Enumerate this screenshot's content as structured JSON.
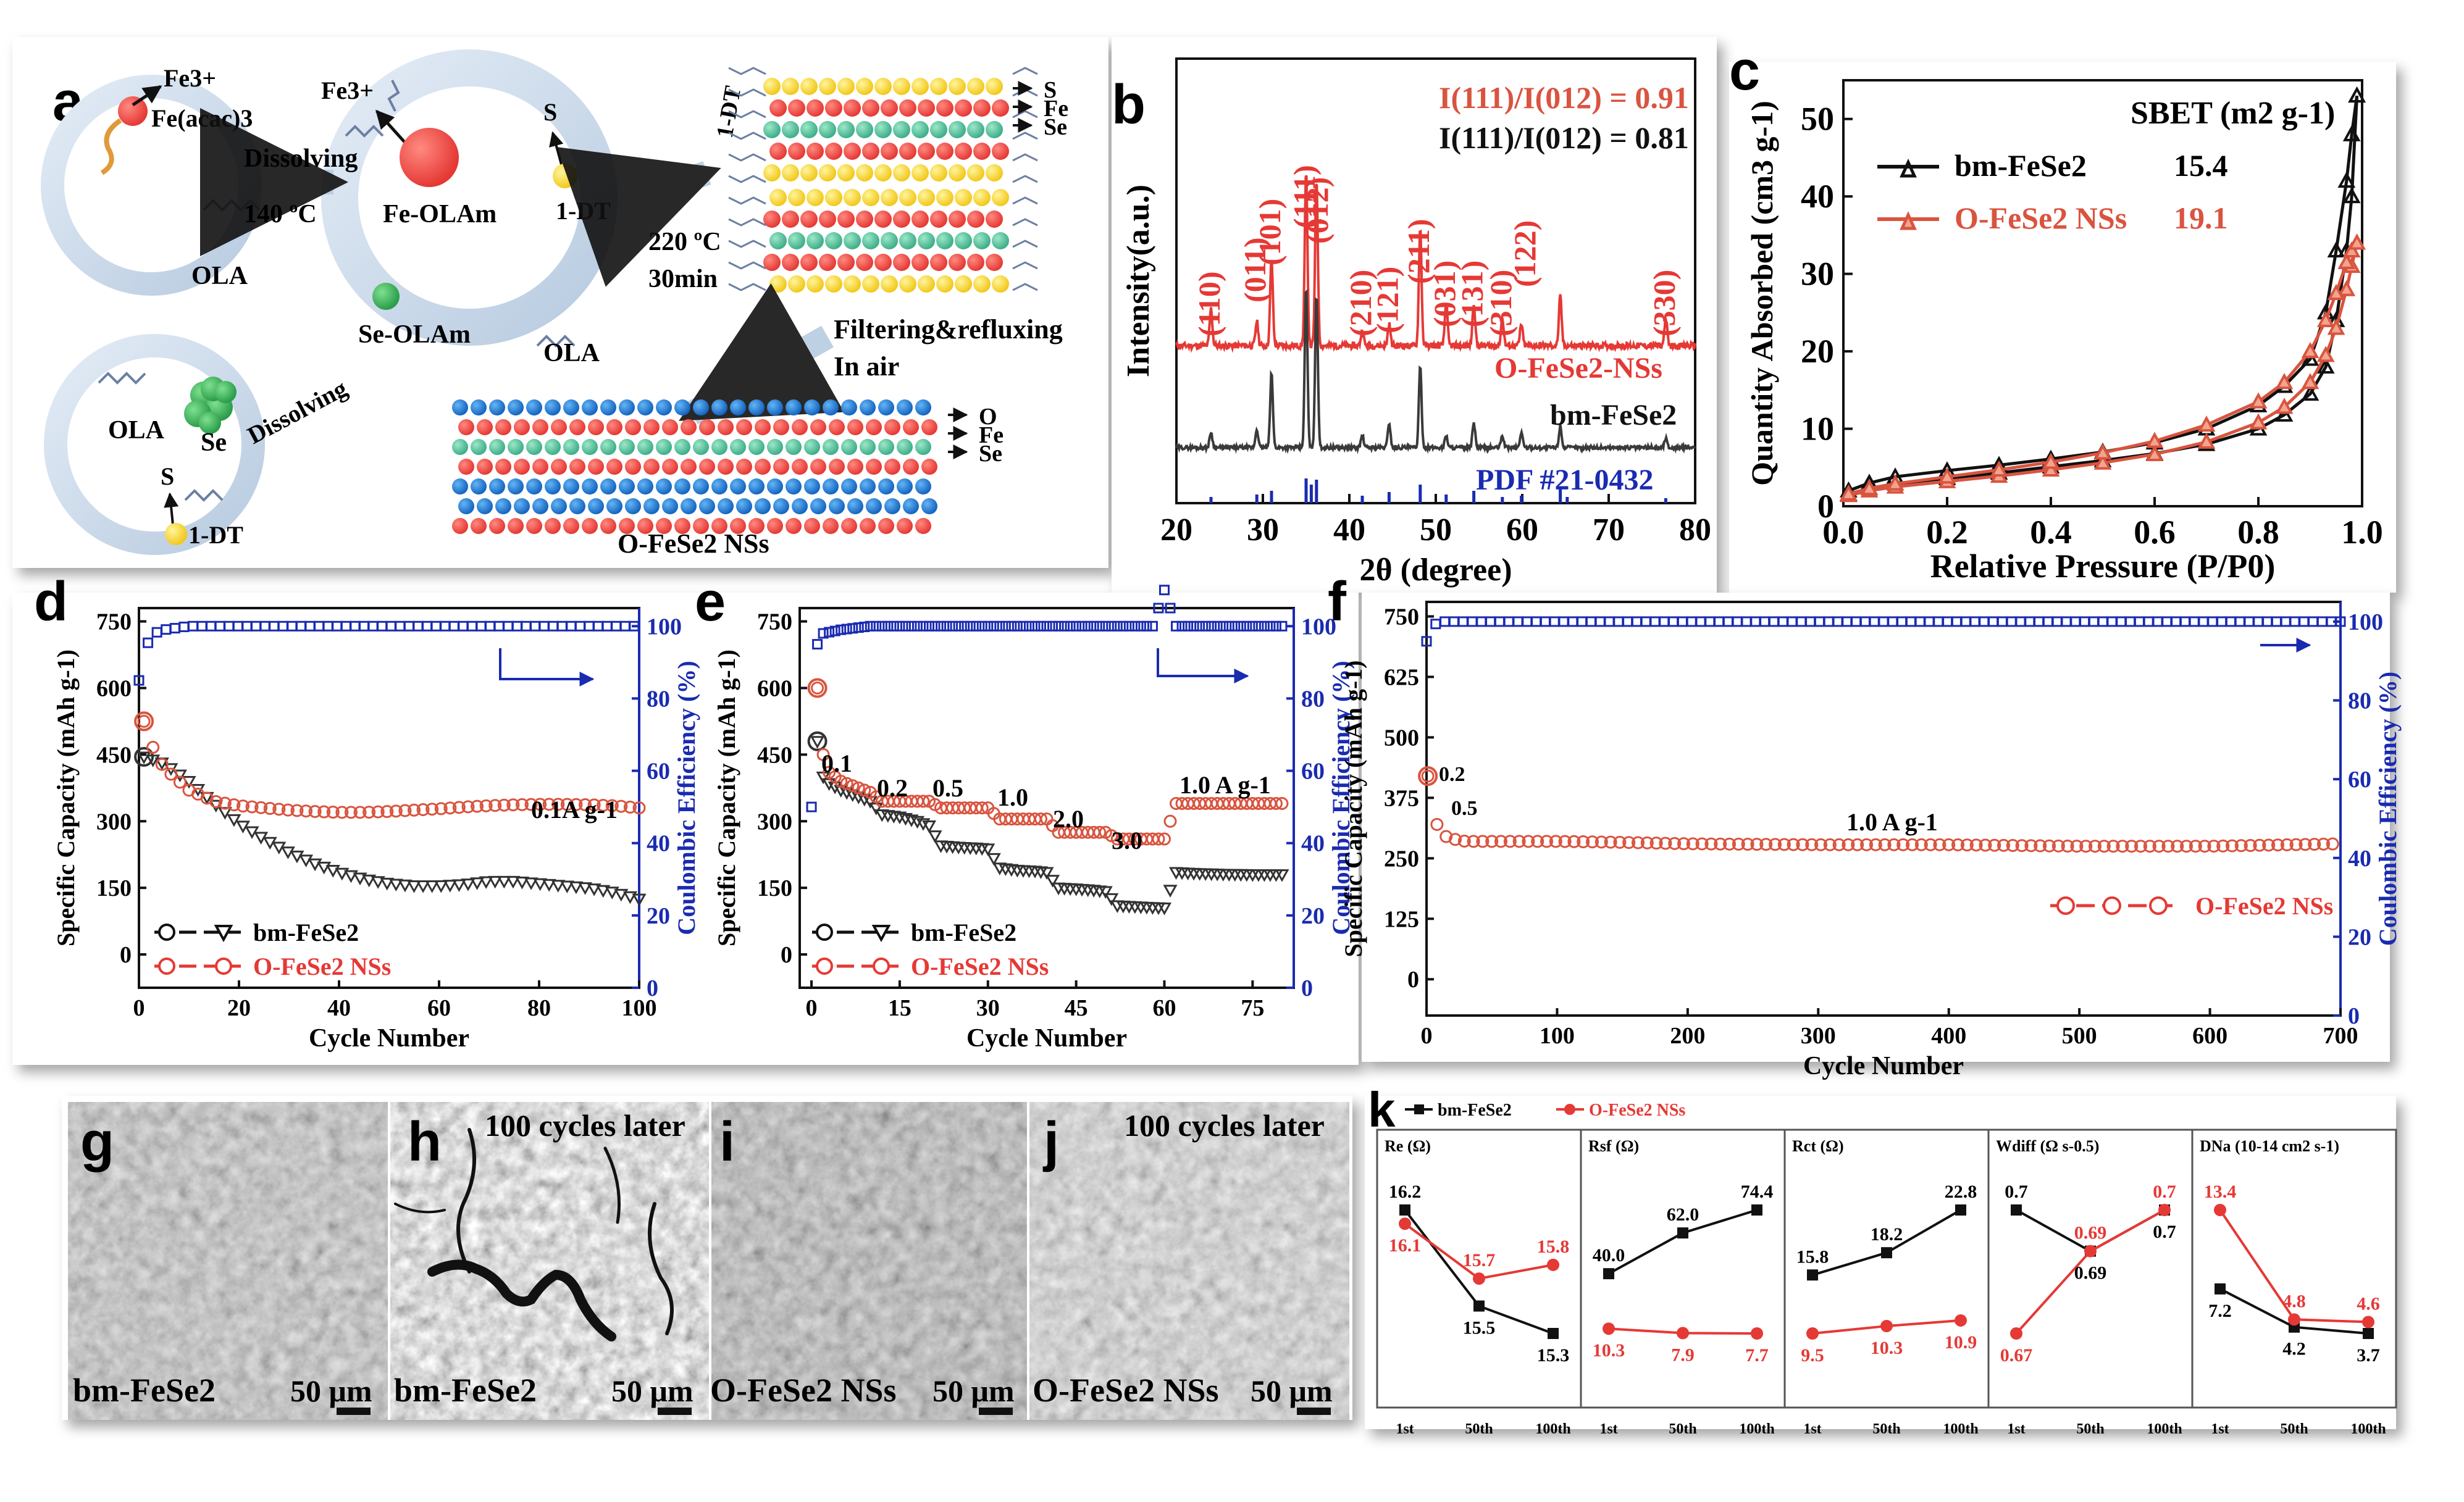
{
  "panel_letters": {
    "a": "a",
    "b": "b",
    "c": "c",
    "d": "d",
    "e": "e",
    "f": "f",
    "g": "g",
    "h": "h",
    "i": "i",
    "j": "j",
    "k": "k"
  },
  "schematic": {
    "fe3_top": "Fe3+",
    "fe_acac": "Fe(acac)3",
    "fe3_mid": "Fe3+",
    "dissolving1": "Dissolving",
    "temp1": "140 ºC",
    "ola1": "OLA",
    "fe_olam": "Fe-OLAm",
    "s1": "S",
    "dt1": "1-DT",
    "dt_rot": "1-DT",
    "temp2": "220 ºC",
    "time2": "30min",
    "se_olam": "Se-OLAm",
    "ola2": "OLA",
    "ola3": "OLA",
    "se": "Se",
    "dissolving2": "Dissolving",
    "s2": "S",
    "dt2": "1-DT",
    "filter1": "Filtering&refluxing",
    "filter2": "In air",
    "layer1_labels": [
      "S",
      "Fe",
      "Se"
    ],
    "layer2_labels": [
      "O",
      "Fe",
      "Se"
    ],
    "product": "O-FeSe2 NSs"
  },
  "colors": {
    "red": "#e53935",
    "black": "#111111",
    "blue": "#1a2bb0",
    "salmon": "#d9543f",
    "orange": "#f2a58e"
  },
  "chart_data": [
    {
      "panel": "b",
      "type": "line",
      "xlabel": "2θ (degree)",
      "ylabel": "Intensity(a.u.)",
      "xlim": [
        20,
        80
      ],
      "xticks": [
        20,
        30,
        40,
        50,
        60,
        70,
        80
      ],
      "ratio_red": "I(111)/I(012) = 0.91",
      "ratio_black": "I(111)/I(012) = 0.81",
      "series": [
        {
          "name": "O-FeSe2-NSs",
          "peaks": [
            24.0,
            29.3,
            31.0,
            35.0,
            36.2,
            41.5,
            44.6,
            48.2,
            51.2,
            54.4,
            57.7,
            59.9,
            64.4,
            76.6
          ]
        },
        {
          "name": "bm-FeSe2",
          "peaks": [
            24.0,
            29.3,
            31.0,
            35.0,
            36.2,
            41.5,
            44.6,
            48.2,
            51.2,
            54.4,
            57.7,
            59.9,
            64.4,
            76.6
          ]
        },
        {
          "name": "PDF #21-0432",
          "sticks": [
            24.0,
            29.3,
            31.0,
            35.0,
            35.6,
            36.2,
            41.5,
            44.6,
            48.2,
            51.2,
            54.4,
            57.7,
            59.9,
            64.4,
            65.2,
            76.6
          ]
        }
      ],
      "hkl_labels": [
        "(110)",
        "(011)",
        "(101)",
        "(111)",
        "(012)",
        "(210)",
        "(121)",
        "(211)",
        "(031)",
        "(131)",
        "(310)",
        "(122)",
        "(330)"
      ]
    },
    {
      "panel": "c",
      "type": "line",
      "xlabel": "Relative Pressure (P/P0)",
      "ylabel": "Quantity Absorbed (cm3 g-1)",
      "xlim": [
        0.0,
        1.0
      ],
      "ylim": [
        0,
        55
      ],
      "xticks": [
        0.0,
        0.2,
        0.4,
        0.6,
        0.8,
        1.0
      ],
      "yticks": [
        0,
        10,
        20,
        30,
        40,
        50
      ],
      "legend_header": "SBET (m2 g-1)",
      "series": [
        {
          "name": "bm-FeSe2",
          "sbet": "15.4",
          "x": [
            0.01,
            0.05,
            0.1,
            0.2,
            0.3,
            0.4,
            0.5,
            0.6,
            0.7,
            0.8,
            0.85,
            0.9,
            0.93,
            0.95,
            0.97,
            0.98,
            0.99
          ],
          "adsorption": [
            1.5,
            2.3,
            2.9,
            3.6,
            4.3,
            5.1,
            5.9,
            6.8,
            8.0,
            10.0,
            11.8,
            14.5,
            18.0,
            24.0,
            33.0,
            40.0,
            53.0
          ],
          "desorption": [
            2.0,
            3.0,
            3.8,
            4.6,
            5.3,
            6.1,
            7.0,
            8.2,
            10.0,
            13.0,
            15.5,
            19.0,
            25.0,
            33.0,
            42.0,
            48.0,
            53.0
          ]
        },
        {
          "name": "O-FeSe2 NSs",
          "sbet": "19.1",
          "x": [
            0.01,
            0.05,
            0.1,
            0.2,
            0.3,
            0.4,
            0.5,
            0.6,
            0.7,
            0.8,
            0.85,
            0.9,
            0.93,
            0.95,
            0.97,
            0.98,
            0.99
          ],
          "adsorption": [
            1.4,
            2.0,
            2.5,
            3.2,
            3.9,
            4.7,
            5.6,
            6.7,
            8.3,
            10.8,
            12.8,
            16.0,
            19.5,
            23.0,
            28.0,
            31.0,
            34.0
          ],
          "desorption": [
            1.6,
            2.3,
            2.9,
            3.8,
            4.7,
            5.7,
            6.9,
            8.4,
            10.5,
            13.5,
            16.0,
            20.0,
            24.0,
            27.5,
            31.5,
            33.0,
            34.0
          ]
        }
      ]
    },
    {
      "panel": "d",
      "type": "scatter",
      "xlabel": "Cycle Number",
      "ylabel": "Specific Capacity (mAh g-1)",
      "y2label": "Coulombic Efficiency (%)",
      "xlim": [
        0,
        100
      ],
      "ylim": [
        -75,
        780
      ],
      "y2lim": [
        0,
        105
      ],
      "xticks": [
        0,
        20,
        40,
        60,
        80,
        100
      ],
      "yticks": [
        0,
        150,
        300,
        450,
        600,
        750
      ],
      "y2ticks": [
        0,
        20,
        40,
        60,
        80,
        100
      ],
      "rate_label": "0.1A g-1",
      "series": [
        {
          "name": "bm-FeSe2",
          "x": [
            1,
            5,
            10,
            15,
            20,
            25,
            30,
            35,
            40,
            45,
            50,
            55,
            60,
            65,
            70,
            75,
            80,
            85,
            90,
            95,
            100
          ],
          "values": [
            445,
            430,
            390,
            340,
            295,
            260,
            230,
            205,
            185,
            170,
            160,
            155,
            155,
            158,
            165,
            165,
            160,
            155,
            150,
            140,
            125
          ]
        },
        {
          "name": "O-FeSe2 NSs",
          "x": [
            1,
            3,
            5,
            10,
            15,
            20,
            25,
            30,
            35,
            40,
            45,
            50,
            55,
            60,
            65,
            70,
            75,
            80,
            85,
            90,
            95,
            100
          ],
          "values": [
            525,
            460,
            420,
            370,
            345,
            335,
            330,
            325,
            322,
            320,
            320,
            322,
            325,
            328,
            332,
            335,
            337,
            338,
            338,
            337,
            335,
            330
          ]
        },
        {
          "name": "Coulombic Efficiency",
          "x": [
            0,
            1,
            2,
            3,
            5,
            10,
            20,
            40,
            60,
            80,
            100
          ],
          "values": [
            85,
            93,
            96,
            98,
            99,
            100,
            100,
            100,
            100,
            100,
            100
          ]
        }
      ]
    },
    {
      "panel": "e",
      "type": "scatter",
      "xlabel": "Cycle Number",
      "ylabel": "Specific Capacity (mAh g-1)",
      "y2label": "Coulombic Efficiency (%)",
      "xlim": [
        -2,
        82
      ],
      "ylim": [
        -75,
        780
      ],
      "y2lim": [
        0,
        105
      ],
      "xticks": [
        0,
        15,
        30,
        45,
        60,
        75
      ],
      "yticks": [
        0,
        150,
        300,
        450,
        600,
        750
      ],
      "y2ticks": [
        0,
        20,
        40,
        60,
        80,
        100
      ],
      "rate_labels": [
        "0.1",
        "0.2",
        "0.5",
        "1.0",
        "2.0",
        "3.0",
        "1.0 A g-1"
      ],
      "series": [
        {
          "name": "bm-FeSe2",
          "x": [
            1,
            2,
            3,
            5,
            8,
            10,
            12,
            15,
            18,
            20,
            22,
            25,
            28,
            30,
            32,
            35,
            38,
            40,
            42,
            45,
            48,
            50,
            52,
            55,
            58,
            60,
            62,
            65,
            70,
            75,
            80
          ],
          "values": [
            480,
            400,
            385,
            370,
            355,
            345,
            315,
            310,
            300,
            290,
            245,
            242,
            240,
            238,
            195,
            190,
            188,
            185,
            150,
            148,
            145,
            142,
            110,
            108,
            106,
            105,
            185,
            183,
            181,
            180,
            180
          ]
        },
        {
          "name": "O-FeSe2 NSs",
          "x": [
            1,
            2,
            3,
            5,
            8,
            10,
            12,
            15,
            18,
            20,
            22,
            25,
            28,
            30,
            32,
            35,
            38,
            40,
            42,
            45,
            48,
            50,
            52,
            55,
            58,
            60,
            62,
            65,
            70,
            75,
            80
          ],
          "values": [
            600,
            450,
            410,
            390,
            375,
            365,
            345,
            345,
            345,
            345,
            330,
            330,
            330,
            330,
            305,
            305,
            305,
            305,
            275,
            275,
            275,
            275,
            260,
            260,
            260,
            260,
            340,
            340,
            340,
            340,
            340
          ]
        },
        {
          "name": "Coulombic Efficiency",
          "x": [
            0,
            1,
            2,
            5,
            10,
            15,
            20,
            25,
            30,
            35,
            40,
            45,
            50,
            55,
            58,
            60,
            62,
            65,
            70,
            75,
            80
          ],
          "values": [
            50,
            95,
            98,
            99,
            100,
            100,
            100,
            100,
            100,
            100,
            100,
            100,
            100,
            100,
            100,
            110,
            100,
            100,
            100,
            100,
            100
          ]
        }
      ]
    },
    {
      "panel": "f",
      "type": "scatter",
      "xlabel": "Cycle Number",
      "ylabel": "Specific Capacity (mAh g-1)",
      "y2label": "Coulombic Efficiency (%)",
      "xlim": [
        0,
        700
      ],
      "ylim": [
        -75,
        780
      ],
      "y2lim": [
        0,
        105
      ],
      "xticks": [
        0,
        100,
        200,
        300,
        400,
        500,
        600,
        700
      ],
      "yticks": [
        0,
        125,
        250,
        375,
        500,
        625,
        750
      ],
      "y2ticks": [
        0,
        20,
        40,
        60,
        80,
        100
      ],
      "rate_labels": [
        "0.2",
        "0.5",
        "1.0 A g-1"
      ],
      "series": [
        {
          "name": "O-FeSe2 NSs",
          "x": [
            1,
            3,
            5,
            8,
            12,
            15,
            20,
            30,
            50,
            100,
            150,
            200,
            300,
            400,
            500,
            600,
            700
          ],
          "values": [
            420,
            380,
            350,
            320,
            300,
            295,
            290,
            285,
            285,
            285,
            283,
            280,
            278,
            278,
            275,
            275,
            280
          ]
        },
        {
          "name": "Coulombic Efficiency",
          "x": [
            0,
            2,
            5,
            10,
            20,
            50,
            100,
            300,
            500,
            700
          ],
          "values": [
            95,
            98,
            99,
            100,
            100,
            100,
            100,
            100,
            100,
            100
          ]
        }
      ]
    },
    {
      "panel": "k",
      "type": "line",
      "legend": [
        "bm-FeSe2",
        "O-FeSe2 NSs"
      ],
      "categories": [
        "1st",
        "50th",
        "100th"
      ],
      "subplots": [
        {
          "title": "Re (Ω)",
          "bm": [
            16.2,
            15.5,
            15.3
          ],
          "o": [
            16.1,
            15.7,
            15.8
          ],
          "bm_labels": [
            "16.2",
            "15.5",
            "15.3"
          ],
          "o_labels": [
            "16.1",
            "15.7",
            "15.8"
          ]
        },
        {
          "title": "Rsf (Ω)",
          "bm": [
            40.0,
            62.0,
            74.4
          ],
          "o": [
            10.3,
            7.9,
            7.7
          ],
          "bm_labels": [
            "40.0",
            "62.0",
            "74.4"
          ],
          "o_labels": [
            "10.3",
            "7.9",
            "7.7"
          ]
        },
        {
          "title": "Rct (Ω)",
          "bm": [
            15.8,
            18.2,
            22.8
          ],
          "o": [
            9.5,
            10.3,
            10.9
          ],
          "bm_labels": [
            "15.8",
            "18.2",
            "22.8"
          ],
          "o_labels": [
            "9.5",
            "10.3",
            "10.9"
          ]
        },
        {
          "title": "Wdiff (Ω s-0.5)",
          "bm": [
            0.7,
            0.69,
            0.7
          ],
          "o": [
            0.67,
            0.69,
            0.7
          ],
          "bm_labels": [
            "0.7",
            "0.69",
            "0.7"
          ],
          "o_labels": [
            "0.67",
            "0.69",
            "0.7"
          ]
        },
        {
          "title": "DNa (10-14 cm2 s-1)",
          "bm": [
            7.2,
            4.2,
            3.7
          ],
          "o": [
            13.4,
            4.8,
            4.6
          ],
          "bm_labels": [
            "7.2",
            "4.2",
            "3.7"
          ],
          "o_labels": [
            "13.4",
            "4.8",
            "4.6"
          ]
        }
      ]
    }
  ],
  "panel_b": {
    "series_labels": {
      "red": "O-FeSe2-NSs",
      "black": "bm-FeSe2",
      "blue": "PDF #21-0432"
    }
  },
  "panel_c": {
    "legend_bm": "bm-FeSe2",
    "legend_o": "O-FeSe2 NSs"
  },
  "legends_def": {
    "bm": "bm-FeSe2",
    "o": "O-FeSe2 NSs"
  },
  "sem": {
    "g": {
      "caption": "bm-FeSe2",
      "scale": "50 μm"
    },
    "h": {
      "caption": "bm-FeSe2",
      "scale": "50 μm",
      "note": "100 cycles later"
    },
    "i": {
      "caption": "O-FeSe2 NSs",
      "scale": "50 μm"
    },
    "j": {
      "caption": "O-FeSe2 NSs",
      "scale": "50 μm",
      "note": "100 cycles later"
    }
  }
}
